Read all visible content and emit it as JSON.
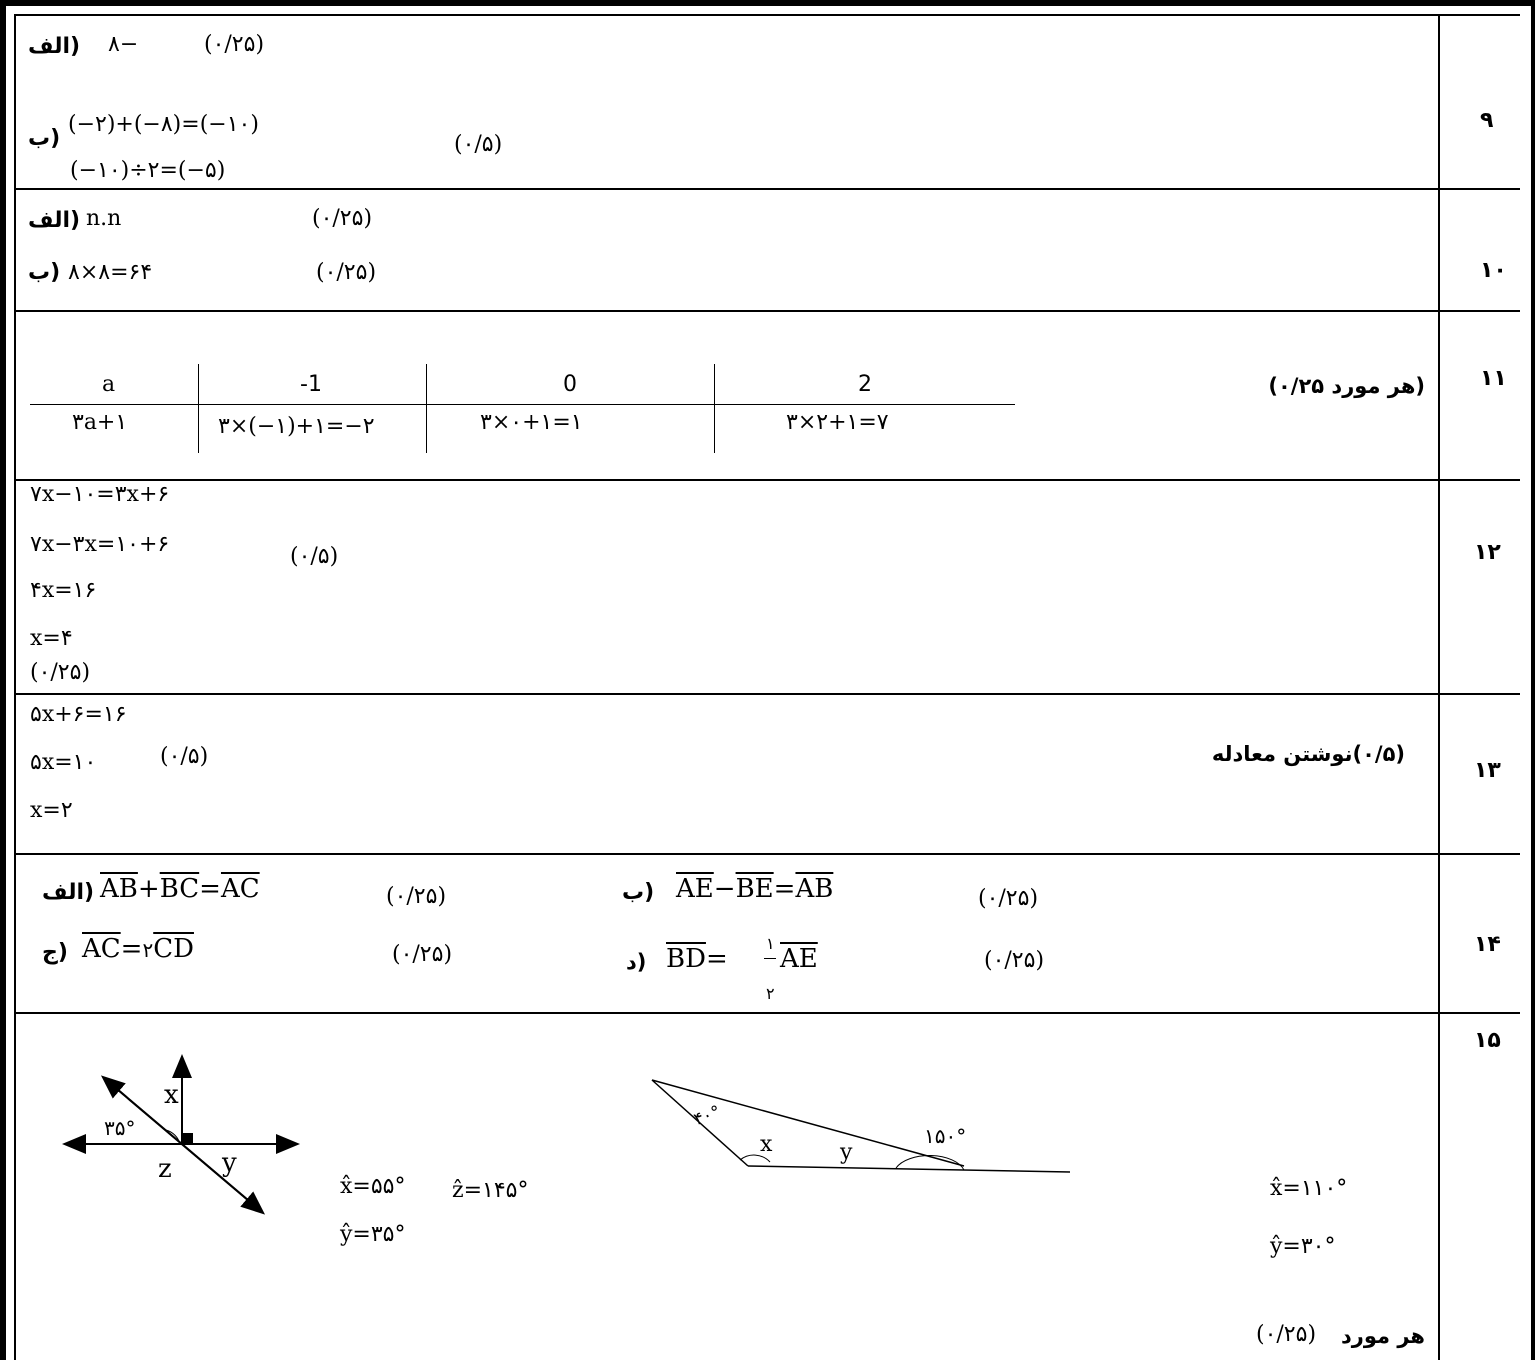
{
  "rows": [
    {
      "num": "۹",
      "lines": [
        {
          "label": "الف)",
          "expr": "۸−",
          "score": "(۰/۲۵)"
        },
        {
          "label": "ب)",
          "expr1": "(−۲)+(−۸)=(−۱۰)",
          "expr2": "(−۱۰)÷۲=(−۵)",
          "score": "(۰/۵)"
        }
      ]
    },
    {
      "num": "۱۰",
      "lines": [
        {
          "label": "الف)",
          "expr": "n.n",
          "score": "(۰/۲۵)"
        },
        {
          "label": "ب)",
          "expr": "۸×۸=۶۴",
          "score": "(۰/۲۵)"
        }
      ]
    },
    {
      "num": "۱۱",
      "note": "(هر مورد ۰/۲۵)",
      "table": {
        "head": [
          "a",
          "-1",
          "0",
          "2"
        ],
        "body": [
          "۳a+۱",
          "۳×(−۱)+۱=−۲",
          "۳×۰+۱=۱",
          "۳×۲+۱=۷"
        ]
      }
    },
    {
      "num": "۱۲",
      "lines": [
        "۷x−۱۰=۳x+۶",
        "۷x−۳x=۱۰+۶",
        "۴x=۱۶",
        "x=۴",
        "(۰/۲۵)"
      ],
      "score": "(۰/۵)"
    },
    {
      "num": "۱۳",
      "lines": [
        "۵x+۶=۱۶",
        "۵x=۱۰",
        "x=۲"
      ],
      "score": "(۰/۵)",
      "note": "(۰/۵)نوشتن معادله"
    },
    {
      "num": "۱۴",
      "items": [
        {
          "label": "الف)",
          "vec": [
            "AB",
            "BC",
            "AC"
          ],
          "ops": [
            "+",
            "="
          ],
          "score": "(۰/۲۵)"
        },
        {
          "label": "ب)",
          "vec": [
            "AE",
            "BE",
            "AB"
          ],
          "ops": [
            "−",
            "="
          ],
          "score": "(۰/۲۵)"
        },
        {
          "label": "ج)",
          "lhs": "AC",
          "rhs_coef": "۲",
          "rhs": "CD",
          "score": "(۰/۲۵)"
        },
        {
          "label": "د)",
          "lhs": "BD",
          "frac_num": "۱",
          "frac_den": "۲",
          "rhs": "AE",
          "score": "(۰/۲۵)"
        }
      ]
    },
    {
      "num": "۱۵",
      "fig1": {
        "x": "x",
        "y": "y",
        "z": "z",
        "angle": "۳۵°"
      },
      "answers1": [
        "x̂=۵۵°",
        "ẑ=۱۴۵°",
        "ŷ=۳۵°"
      ],
      "fig2": {
        "a": "۴۰°",
        "x": "x",
        "y": "y",
        "ext": "۱۵۰°"
      },
      "answers2": [
        "x̂=۱۱۰°",
        "ŷ=۳۰°"
      ],
      "note_label": "هر مورد",
      "note_score": "(۰/۲۵)"
    }
  ]
}
